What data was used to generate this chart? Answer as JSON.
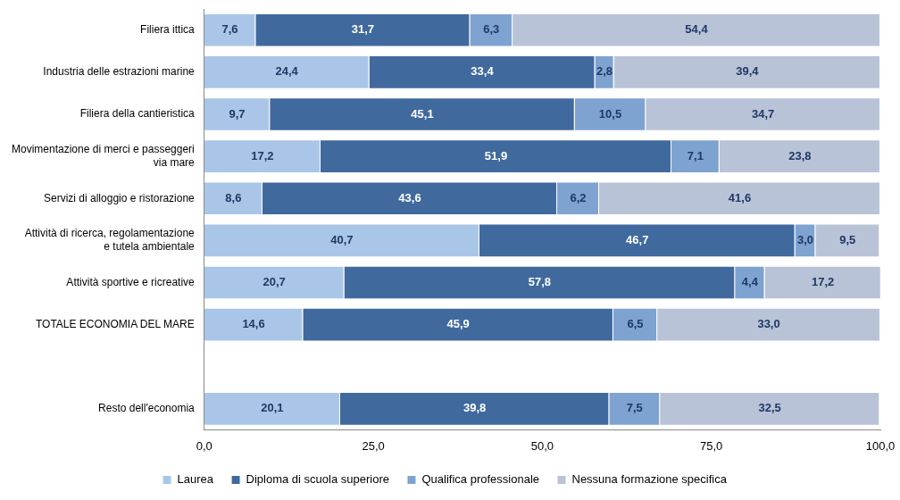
{
  "chart_data": {
    "type": "bar",
    "orientation": "horizontal",
    "stacked": true,
    "categories": [
      "Filiera ittica",
      "Industria delle estrazioni marine",
      "Filiera della cantieristica",
      "Movimentazione di merci e passeggeri via mare",
      "Servizi di alloggio e ristorazione",
      "Attività di ricerca, regolamentazione e tutela ambientale",
      "Attività sportive e ricreative",
      "TOTALE ECONOMIA DEL MARE",
      null,
      "Resto dell'economia"
    ],
    "series": [
      {
        "name": "Laurea",
        "color": "#a9c6e8",
        "values": [
          7.6,
          24.4,
          9.7,
          17.2,
          8.6,
          40.7,
          20.7,
          14.6,
          null,
          20.1
        ],
        "value_labels": [
          "7,6",
          "24,4",
          "9,7",
          "17,2",
          "8,6",
          "40,7",
          "20,7",
          "14,6",
          null,
          "20,1"
        ]
      },
      {
        "name": "Diploma di scuola superiore",
        "color": "#40699e",
        "values": [
          31.7,
          33.4,
          45.1,
          51.9,
          43.6,
          46.7,
          57.8,
          45.9,
          null,
          39.8
        ],
        "value_labels": [
          "31,7",
          "33,4",
          "45,1",
          "51,9",
          "43,6",
          "46,7",
          "57,8",
          "45,9",
          null,
          "39,8"
        ]
      },
      {
        "name": "Qualifica professionale",
        "color": "#7ea3d1",
        "values": [
          6.3,
          2.8,
          10.5,
          7.1,
          6.2,
          3.0,
          4.4,
          6.5,
          null,
          7.5
        ],
        "value_labels": [
          "6,3",
          "2,8",
          "10,5",
          "7,1",
          "6,2",
          "3,0",
          "4,4",
          "6,5",
          null,
          "7,5"
        ]
      },
      {
        "name": "Nessuna formazione specifica",
        "color": "#b9c3d8",
        "values": [
          54.4,
          39.4,
          34.7,
          23.8,
          41.6,
          9.5,
          17.2,
          33.0,
          null,
          32.5
        ],
        "value_labels": [
          "54,4",
          "39,4",
          "34,7",
          "23,8",
          "41,6",
          "9,5",
          "17,2",
          "33,0",
          null,
          "32,5"
        ]
      }
    ],
    "xlim": [
      0,
      100
    ],
    "xticks": [
      {
        "value": 0,
        "label": "0,0"
      },
      {
        "value": 25,
        "label": "25,0"
      },
      {
        "value": 50,
        "label": "50,0"
      },
      {
        "value": 75,
        "label": "75,0"
      },
      {
        "value": 100,
        "label": "100,0"
      }
    ],
    "grid": false,
    "legend": "bottom"
  }
}
